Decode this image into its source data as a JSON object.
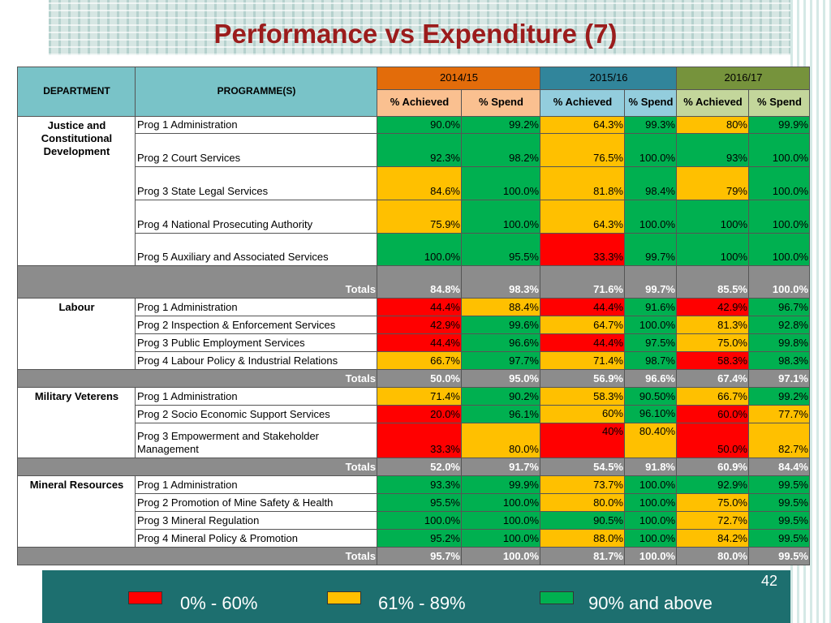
{
  "title": "Performance vs Expenditure (7)",
  "header": {
    "department": "DEPARTMENT",
    "programmes": "PROGRAMME(S)",
    "years": [
      "2014/15",
      "2015/16",
      "2016/17"
    ],
    "sub": [
      "% Achieved",
      "%  Spend",
      "% Achieved",
      "% Spend",
      "% Achieved",
      "% Spend"
    ]
  },
  "colors": {
    "red": "#ff0000",
    "amber": "#ffc000",
    "green": "#00b050",
    "totals_bg": "#8c8c8c",
    "title": "#9b1c1c",
    "footer": "#1d6f6f"
  },
  "departments": [
    {
      "name": "Justice and Constitutional Development",
      "programmes": [
        {
          "name": "Prog 1 Administration",
          "values": [
            "90.0%",
            "99.2%",
            "64.3%",
            "99.3%",
            "80%",
            "99.9%"
          ],
          "status": [
            "g",
            "g",
            "a",
            "g",
            "a",
            "g"
          ]
        },
        {
          "name": "Prog 2 Court Services",
          "values": [
            "92.3%",
            "98.2%",
            "76.5%",
            "100.0%",
            "93%",
            "100.0%"
          ],
          "status": [
            "g",
            "g",
            "a",
            "g",
            "g",
            "g"
          ]
        },
        {
          "name": "Prog 3 State Legal Services",
          "values": [
            "84.6%",
            "100.0%",
            "81.8%",
            "98.4%",
            "79%",
            "100.0%"
          ],
          "status": [
            "a",
            "g",
            "a",
            "g",
            "a",
            "g"
          ]
        },
        {
          "name": "Prog 4 National Prosecuting Authority",
          "values": [
            "75.9%",
            "100.0%",
            "64.3%",
            "100.0%",
            "100%",
            "100.0%"
          ],
          "status": [
            "a",
            "g",
            "a",
            "g",
            "g",
            "g"
          ]
        },
        {
          "name": "Prog 5 Auxiliary and Associated Services",
          "values": [
            "100.0%",
            "95.5%",
            "33.3%",
            "99.7%",
            "100%",
            "100.0%"
          ],
          "status": [
            "g",
            "g",
            "r",
            "g",
            "g",
            "g"
          ]
        }
      ],
      "totals_label": "Totals",
      "totals": [
        "84.8%",
        "98.3%",
        "71.6%",
        "99.7%",
        "85.5%",
        "100.0%"
      ]
    },
    {
      "name": "Labour",
      "programmes": [
        {
          "name": "Prog 1 Administration",
          "values": [
            "44.4%",
            "88.4%",
            "44.4%",
            "91.6%",
            "42.9%",
            "96.7%"
          ],
          "status": [
            "r",
            "a",
            "r",
            "g",
            "r",
            "g"
          ]
        },
        {
          "name": "Prog 2 Inspection & Enforcement Services",
          "values": [
            "42.9%",
            "99.6%",
            "64.7%",
            "100.0%",
            "81.3%",
            "92.8%"
          ],
          "status": [
            "r",
            "g",
            "a",
            "g",
            "a",
            "g"
          ]
        },
        {
          "name": "Prog 3 Public Employment Services",
          "values": [
            "44.4%",
            "96.6%",
            "44.4%",
            "97.5%",
            "75.0%",
            "99.8%"
          ],
          "status": [
            "r",
            "g",
            "r",
            "g",
            "a",
            "g"
          ]
        },
        {
          "name": "Prog 4 Labour Policy & Industrial Relations",
          "values": [
            "66.7%",
            "97.7%",
            "71.4%",
            "98.7%",
            "58.3%",
            "98.3%"
          ],
          "status": [
            "a",
            "g",
            "a",
            "g",
            "r",
            "g"
          ]
        }
      ],
      "totals_label": "Totals",
      "totals": [
        "50.0%",
        "95.0%",
        "56.9%",
        "96.6%",
        "67.4%",
        "97.1%"
      ]
    },
    {
      "name": "Military Veterens",
      "programmes": [
        {
          "name": "Prog 1 Administration",
          "values": [
            "71.4%",
            "90.2%",
            "58.3%",
            "90.50%",
            "66.7%",
            "99.2%"
          ],
          "status": [
            "a",
            "g",
            "a",
            "g",
            "a",
            "g"
          ]
        },
        {
          "name": "Prog 2 Socio Economic Support Services",
          "values": [
            "20.0%",
            "96.1%",
            "60%",
            "96.10%",
            "60.0%",
            "77.7%"
          ],
          "status": [
            "r",
            "g",
            "a",
            "g",
            "r",
            "a"
          ]
        },
        {
          "name": "Prog 3 Empowerment and Stakeholder Management",
          "values": [
            "33.3%",
            "80.0%",
            "40%",
            "80.40%",
            "50.0%",
            "82.7%"
          ],
          "status": [
            "r",
            "a",
            "r",
            "a",
            "r",
            "a"
          ]
        }
      ],
      "totals_label": "Totals",
      "totals": [
        "52.0%",
        "91.7%",
        "54.5%",
        "91.8%",
        "60.9%",
        "84.4%"
      ]
    },
    {
      "name": "Mineral Resources",
      "programmes": [
        {
          "name": "Prog 1 Administration",
          "values": [
            "93.3%",
            "99.9%",
            "73.7%",
            "100.0%",
            "92.9%",
            "99.5%"
          ],
          "status": [
            "g",
            "g",
            "a",
            "g",
            "g",
            "g"
          ]
        },
        {
          "name": "Prog 2 Promotion of Mine Safety & Health",
          "values": [
            "95.5%",
            "100.0%",
            "80.0%",
            "100.0%",
            "75.0%",
            "99.5%"
          ],
          "status": [
            "g",
            "g",
            "a",
            "g",
            "a",
            "g"
          ]
        },
        {
          "name": "Prog 3 Mineral Regulation",
          "values": [
            "100.0%",
            "100.0%",
            "90.5%",
            "100.0%",
            "72.7%",
            "99.5%"
          ],
          "status": [
            "g",
            "g",
            "g",
            "g",
            "a",
            "g"
          ]
        },
        {
          "name": "Prog 4 Mineral Policy & Promotion",
          "values": [
            "95.2%",
            "100.0%",
            "88.0%",
            "100.0%",
            "84.2%",
            "99.5%"
          ],
          "status": [
            "g",
            "g",
            "a",
            "g",
            "a",
            "g"
          ]
        }
      ],
      "totals_label": "Totals",
      "totals": [
        "95.7%",
        "100.0%",
        "81.7%",
        "100.0%",
        "80.0%",
        "99.5%"
      ]
    }
  ],
  "legend": [
    {
      "label": "0% - 60%",
      "color": "#ff0000"
    },
    {
      "label": "61% - 89%",
      "color": "#ffc000"
    },
    {
      "label": "90% and above",
      "color": "#00b050"
    }
  ],
  "page_number": "42"
}
